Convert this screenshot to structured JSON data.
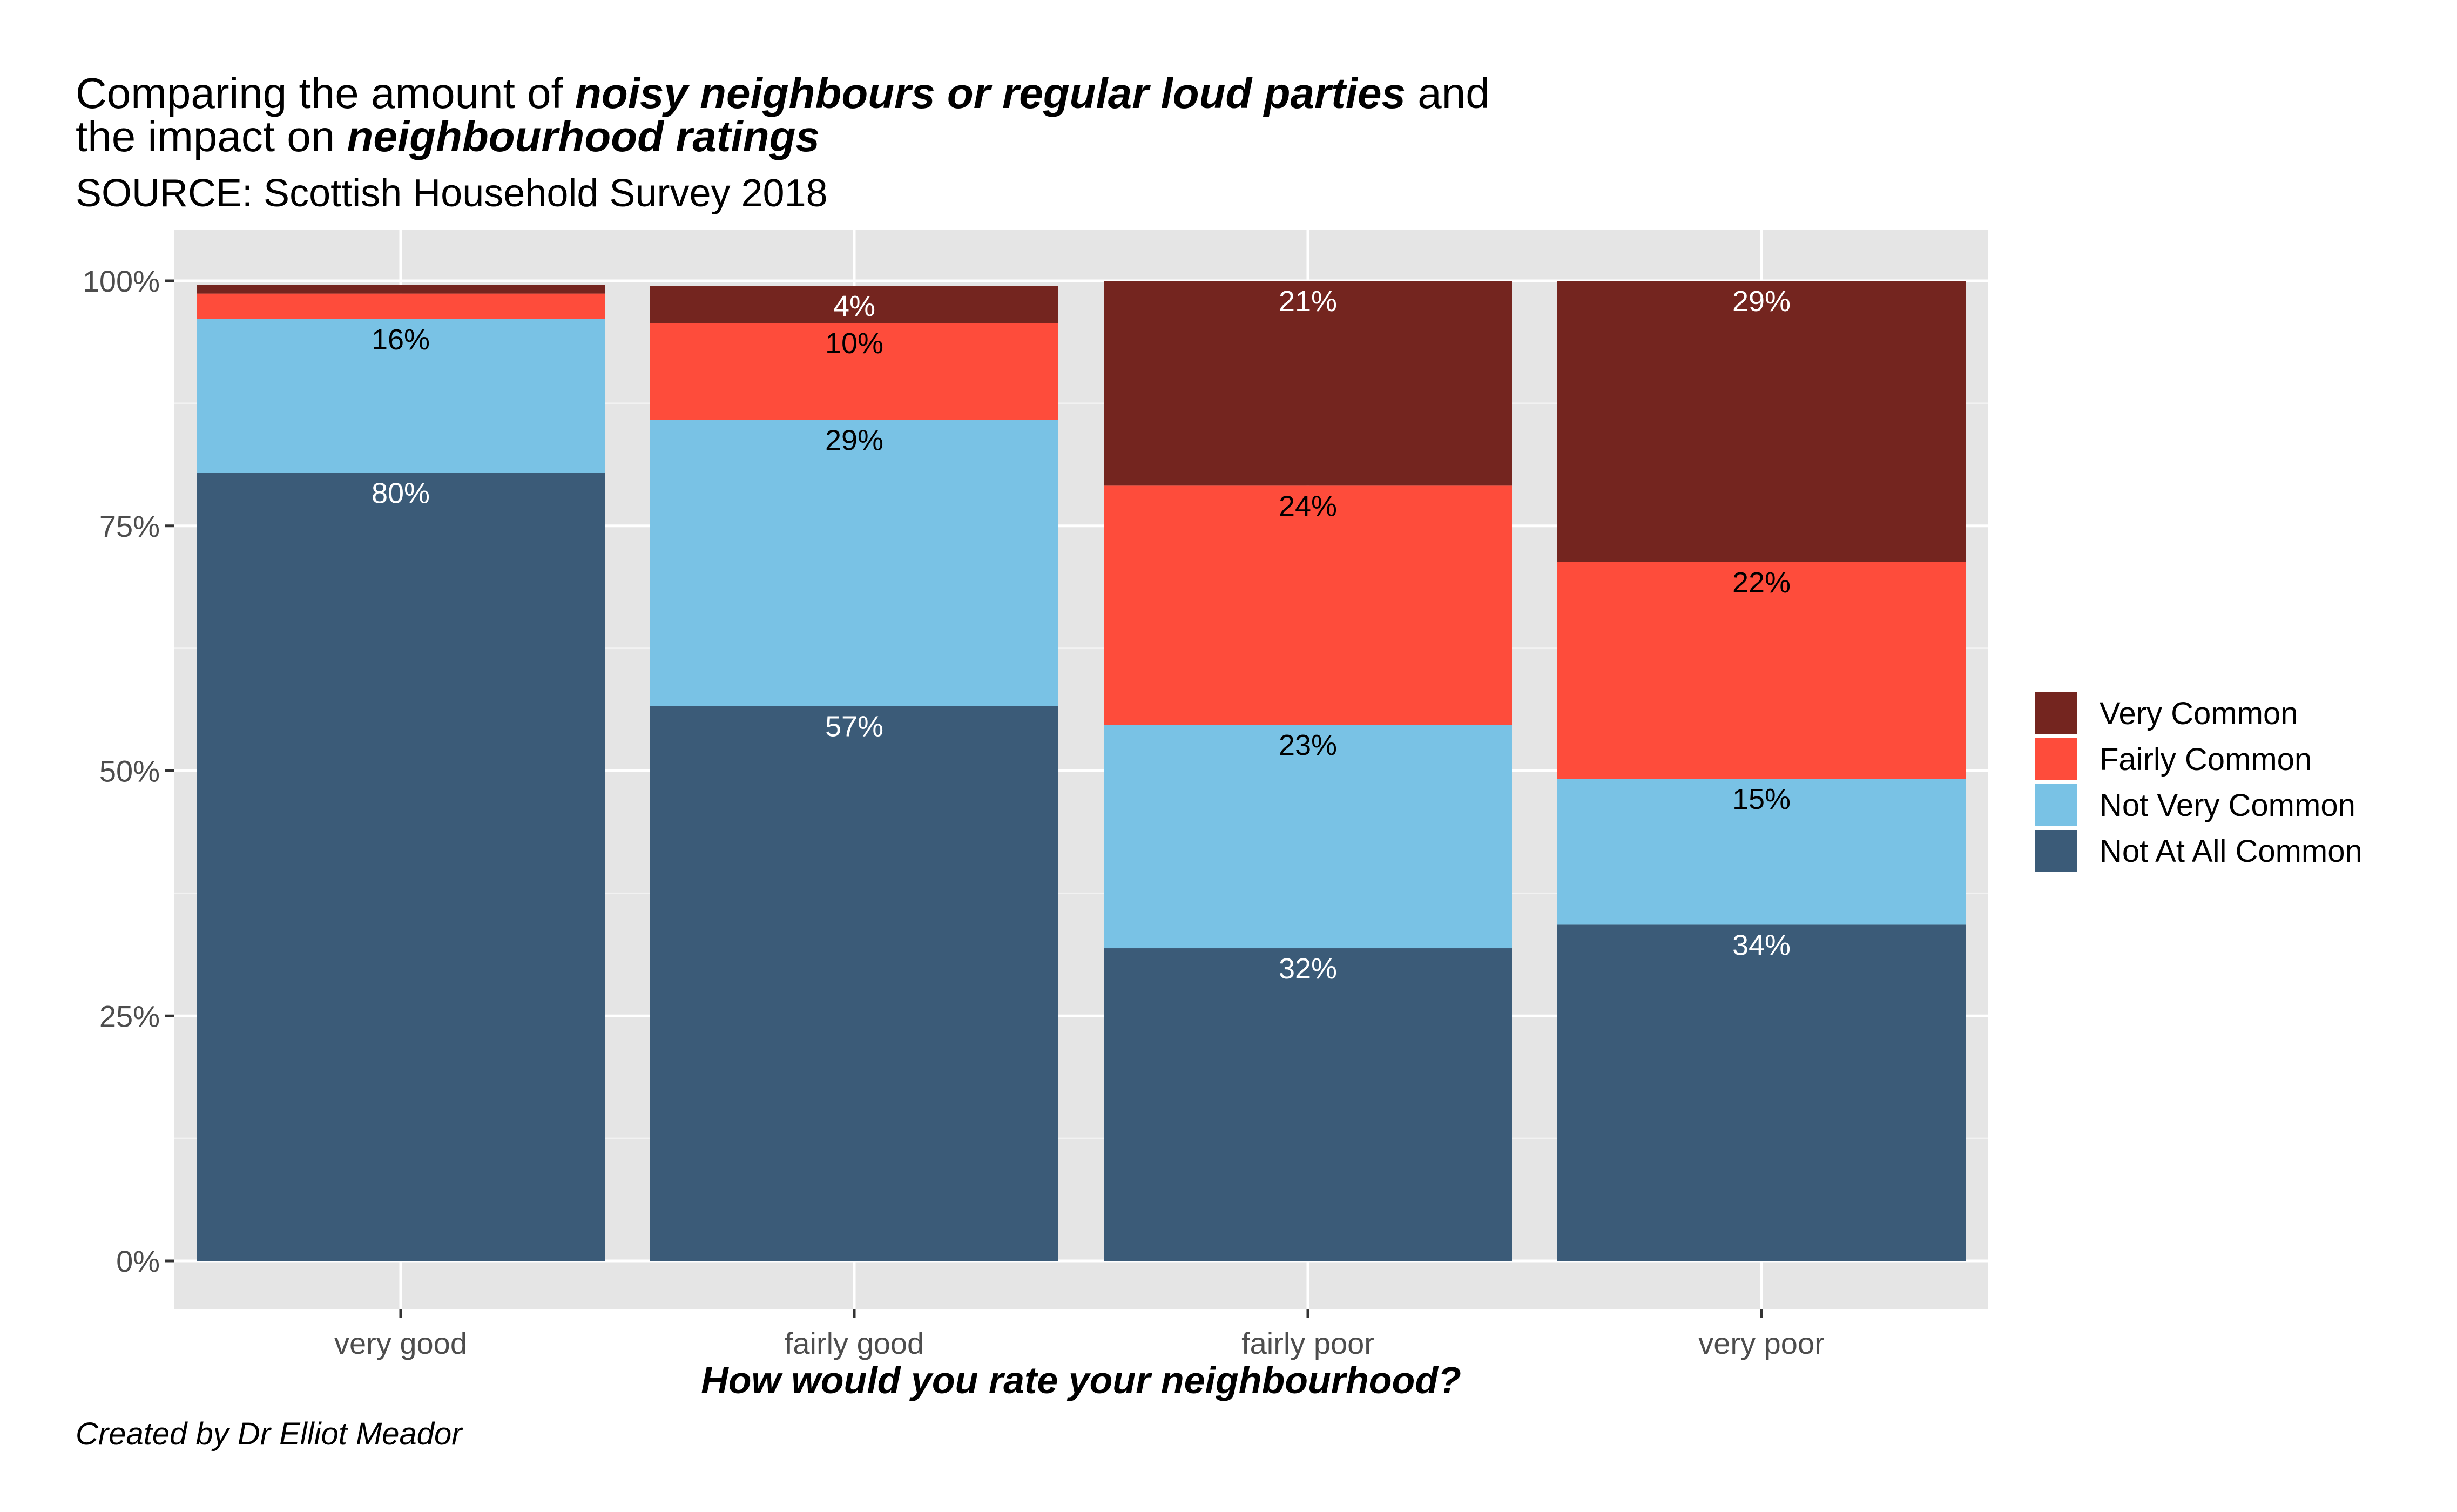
{
  "title": {
    "line1_prefix": "Comparing the amount of ",
    "line1_emphasis": "noisy neighbours or regular loud parties",
    "line1_suffix": " and",
    "line2_prefix": "the impact on ",
    "line2_emphasis": "neighbourhood ratings"
  },
  "subtitle": "SOURCE: Scottish Household Survey 2018",
  "caption": "Created by Dr Elliot Meador",
  "chart_data": {
    "type": "bar",
    "stacked": true,
    "categories": [
      "very good",
      "fairly good",
      "fairly poor",
      "very poor"
    ],
    "xlabel": "How would you rate your neighbourhood?",
    "ylabel": "",
    "ylim": [
      0,
      1
    ],
    "y_ticks": [
      0,
      0.25,
      0.5,
      0.75,
      1.0
    ],
    "y_tick_labels": [
      "0%",
      "25%",
      "50%",
      "75%",
      "100%"
    ],
    "grid": true,
    "legend_position": "right",
    "series": [
      {
        "name": "Not At All Common",
        "color": "#3b5b78",
        "values": [
          0.804,
          0.566,
          0.319,
          0.343
        ],
        "labels": [
          "80%",
          "57%",
          "32%",
          "34%"
        ],
        "label_color": "#ffffff"
      },
      {
        "name": "Not Very Common",
        "color": "#79c2e5",
        "values": [
          0.157,
          0.292,
          0.228,
          0.149
        ],
        "labels": [
          "16%",
          "29%",
          "23%",
          "15%"
        ],
        "label_color": "#000000"
      },
      {
        "name": "Fairly Common",
        "color": "#fe4c3b",
        "values": [
          0.026,
          0.099,
          0.244,
          0.221
        ],
        "labels": [
          "",
          "10%",
          "24%",
          "22%"
        ],
        "label_color": "#000000"
      },
      {
        "name": "Very Common",
        "color": "#74251f",
        "values": [
          0.009,
          0.038,
          0.209,
          0.287
        ],
        "labels": [
          "",
          "4%",
          "21%",
          "29%"
        ],
        "label_color": "#ffffff"
      }
    ],
    "legend_order": [
      "Very Common",
      "Fairly Common",
      "Not Very Common",
      "Not At All Common"
    ]
  }
}
